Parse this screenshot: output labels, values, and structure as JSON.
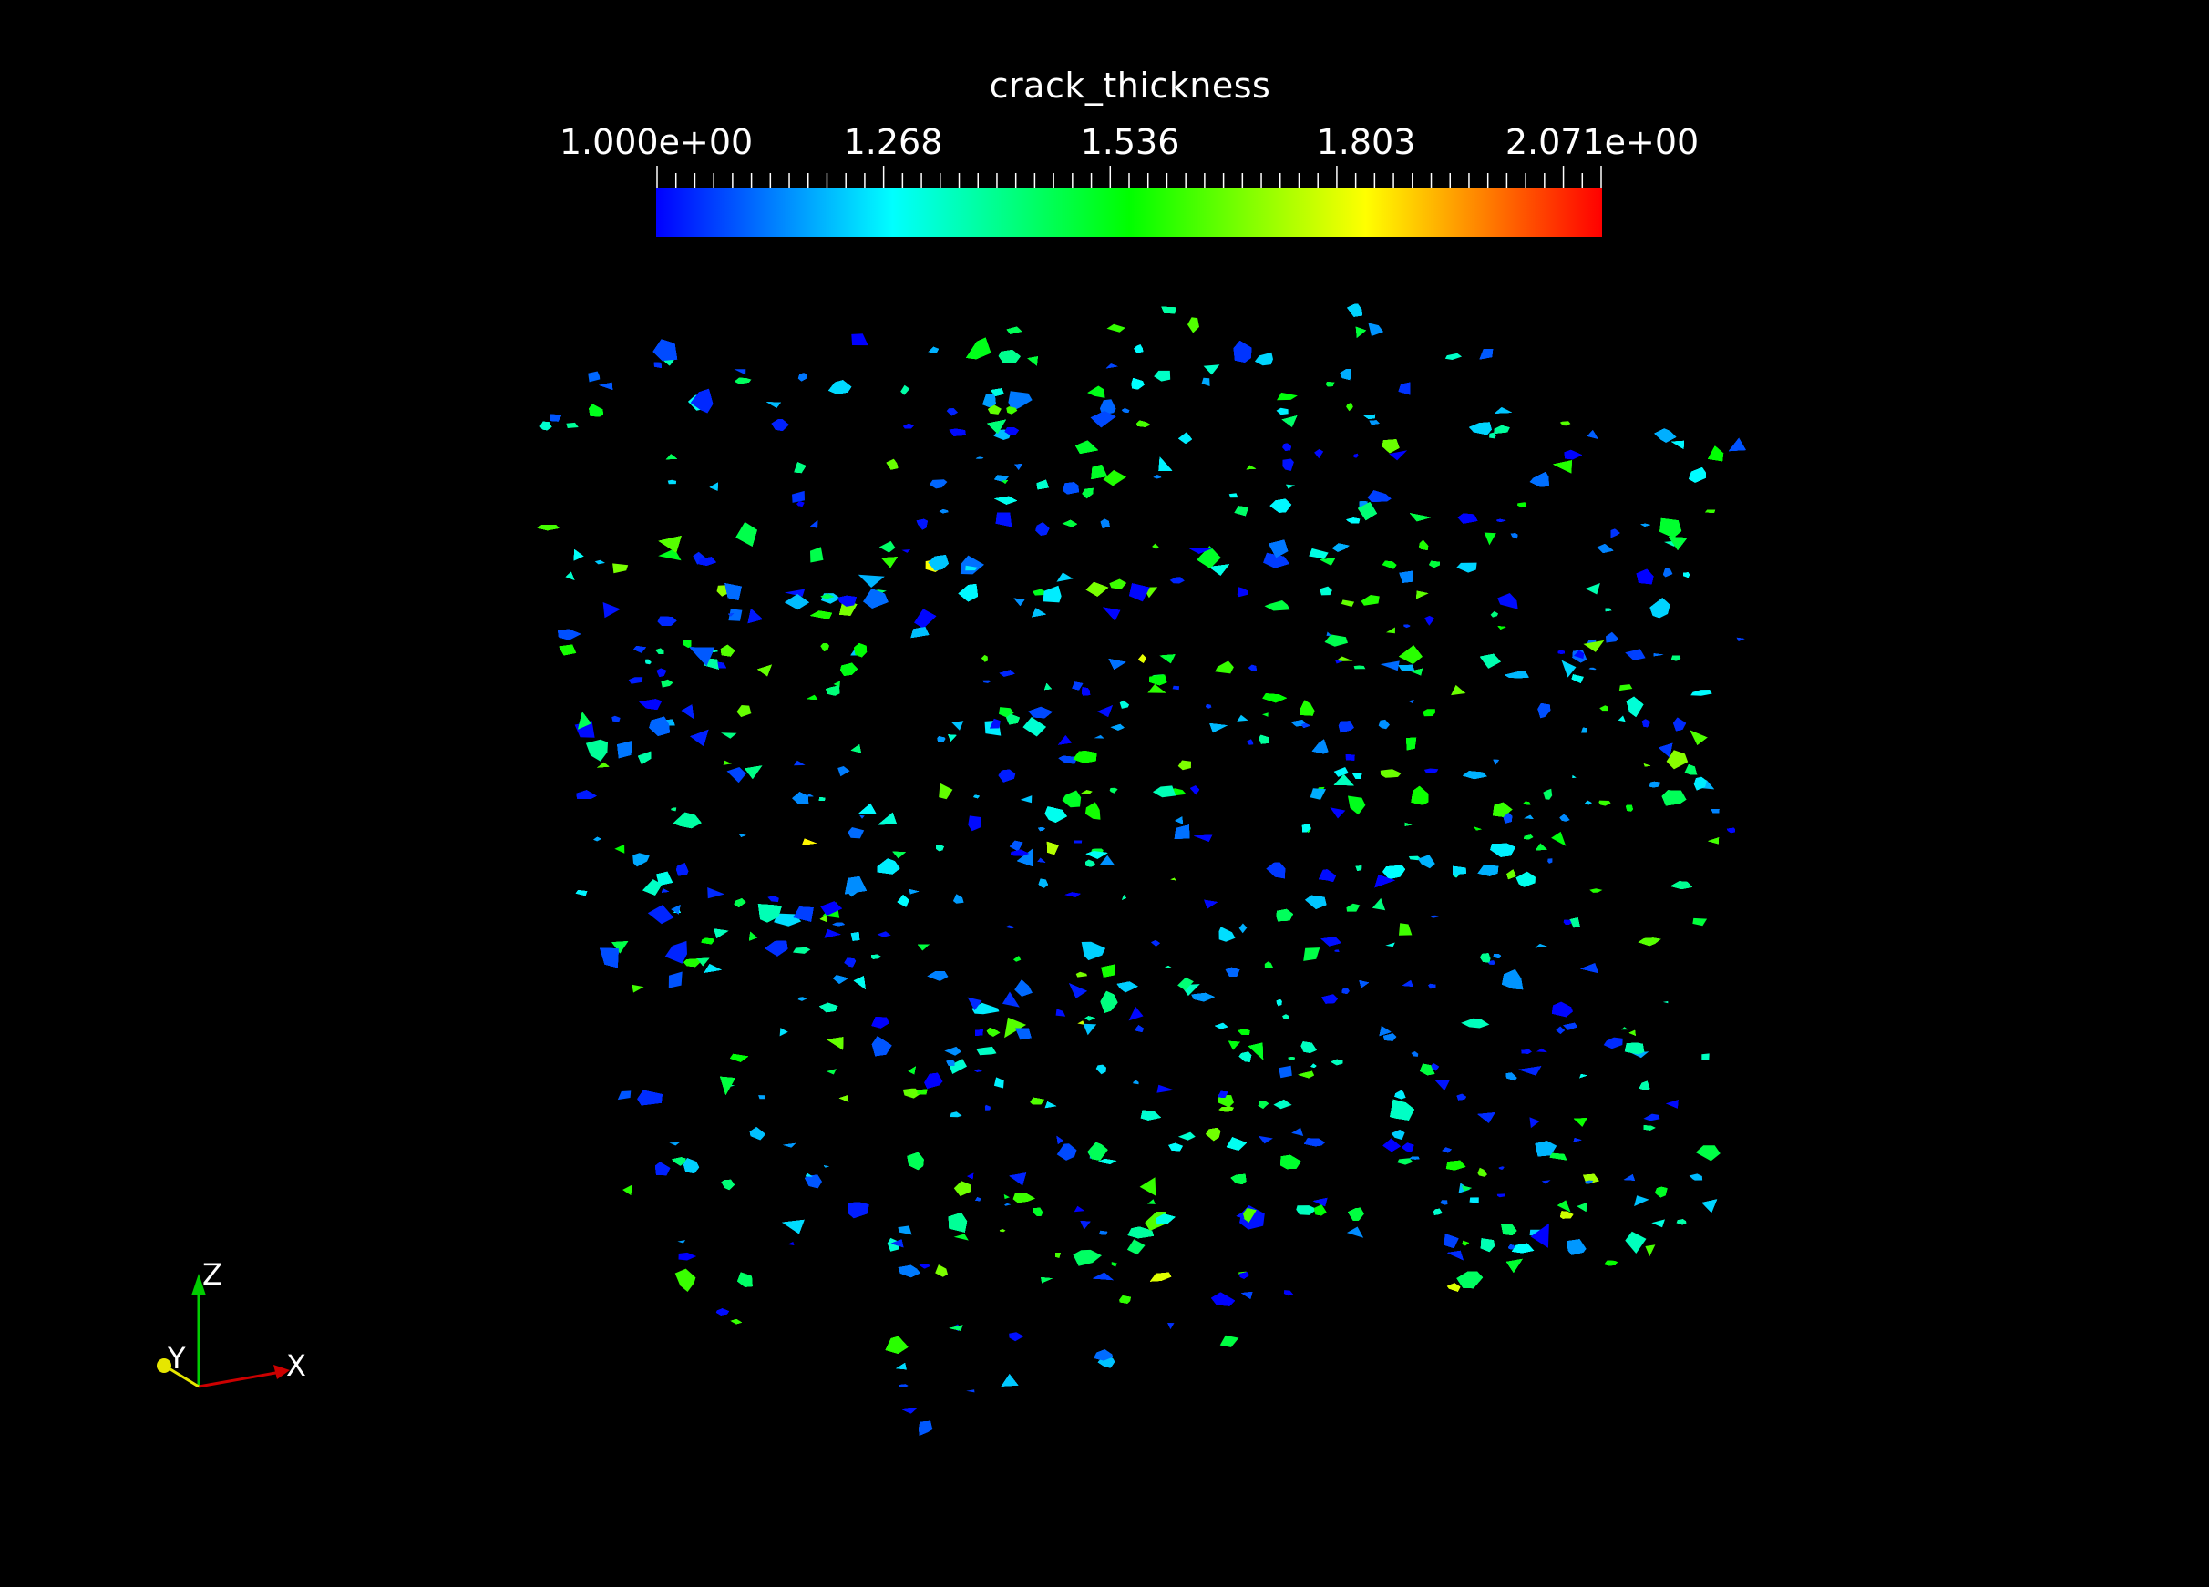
{
  "scalar_bar": {
    "title": "crack_thickness",
    "labels": [
      "1.000e+00",
      "1.268",
      "1.536",
      "1.803",
      "2.071e+00"
    ],
    "range": [
      1.0,
      2.071
    ],
    "colormap": [
      "#0000ff",
      "#0080ff",
      "#00ffff",
      "#00ff80",
      "#00ff00",
      "#80ff00",
      "#ffff00",
      "#ff8000",
      "#ff0000"
    ]
  },
  "axes": {
    "x_label": "X",
    "y_label": "Y",
    "z_label": "Z",
    "x_color": "#cc0000",
    "y_color": "#e6e600",
    "z_color": "#00cc00"
  },
  "background": "#000000"
}
